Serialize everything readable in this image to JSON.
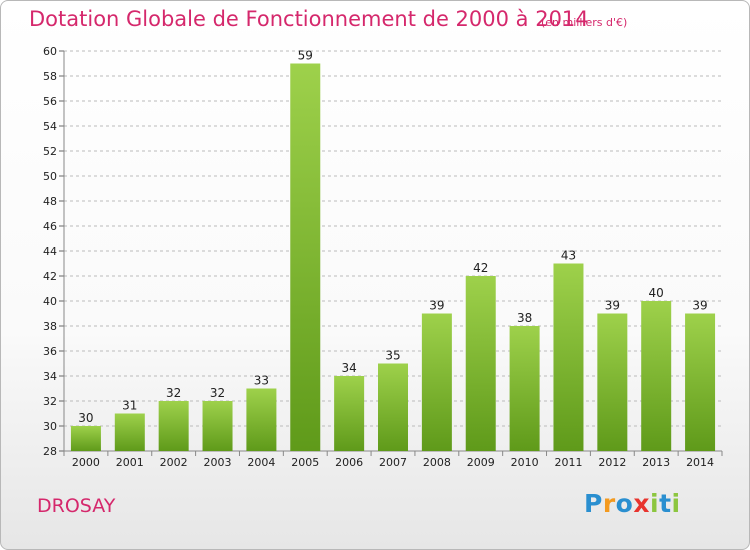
{
  "chart_title": "Dotation Globale de Fonctionnement de 2000 à 2014",
  "chart_subtitle": "(en milliers d'€)",
  "commune": "DROSAY",
  "logo": {
    "text": "Proxiti",
    "letters": [
      {
        "ch": "P",
        "color": "#2a8fd0"
      },
      {
        "ch": "r",
        "color": "#f39a1f"
      },
      {
        "ch": "o",
        "color": "#2a8fd0"
      },
      {
        "ch": "x",
        "color": "#e8342e"
      },
      {
        "ch": "i",
        "color": "#8cc63f"
      },
      {
        "ch": "t",
        "color": "#2a8fd0"
      },
      {
        "ch": "i",
        "color": "#8cc63f"
      }
    ]
  },
  "colors": {
    "title": "#d5286c",
    "bar_light": "#9ed14b",
    "bar_dark": "#5f9a1a",
    "grid": "#bbbbbb"
  },
  "chart_data": {
    "type": "bar",
    "categories": [
      "2000",
      "2001",
      "2002",
      "2003",
      "2004",
      "2005",
      "2006",
      "2007",
      "2008",
      "2009",
      "2010",
      "2011",
      "2012",
      "2013",
      "2014"
    ],
    "values": [
      30,
      31,
      32,
      32,
      33,
      59,
      34,
      35,
      39,
      42,
      38,
      43,
      39,
      40,
      39
    ],
    "ylim": [
      28,
      60
    ],
    "yticks": [
      28,
      30,
      32,
      34,
      36,
      38,
      40,
      42,
      44,
      46,
      48,
      50,
      52,
      54,
      56,
      58,
      60
    ],
    "grid": true,
    "data_labels": true
  }
}
